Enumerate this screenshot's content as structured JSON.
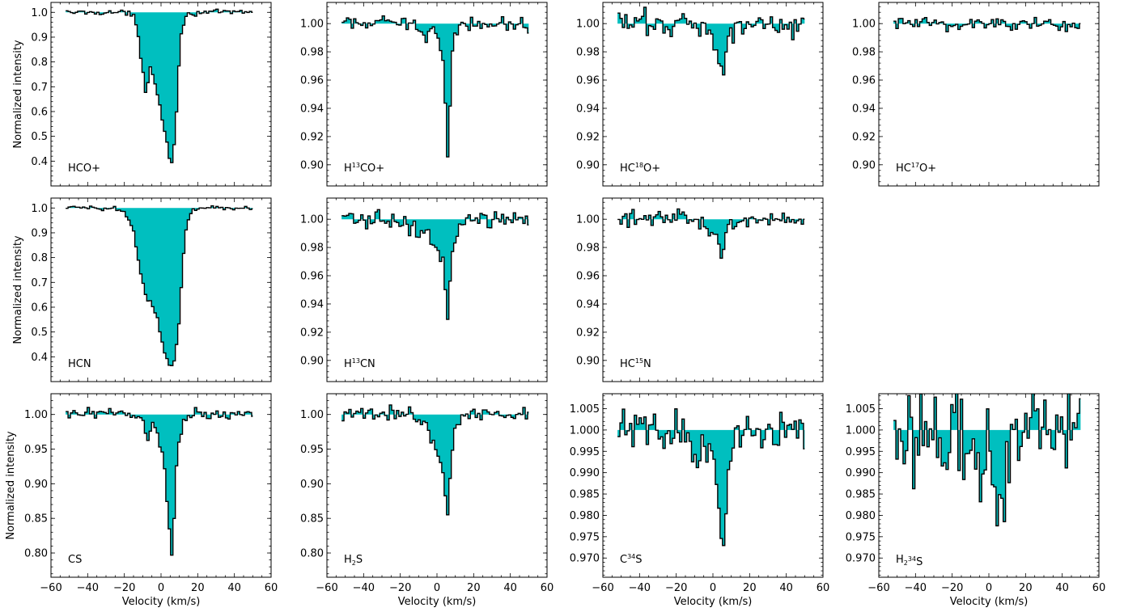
{
  "colors": {
    "fill": "#00bfbf",
    "step": "#000000",
    "frame": "#000000"
  },
  "layout": {
    "xlabel": "Velocity (km/s)",
    "ylabel": "Normalized intensity"
  },
  "chart_data": [
    {
      "type": "line",
      "row": 0,
      "col": 0,
      "label": [
        "HCO+"
      ],
      "xlim": [
        -60,
        60
      ],
      "ylim": [
        0.3,
        1.04
      ],
      "yticks": [
        0.4,
        0.5,
        0.6,
        0.7,
        0.8,
        0.9,
        1.0
      ],
      "ydecimals": 1,
      "show_xticklabels": false,
      "show_ylabel": true,
      "show_xlabel": false,
      "profile": {
        "noise": 0.005,
        "points": [
          [
            -52,
            1.0
          ],
          [
            -20,
            1.0
          ],
          [
            -15,
            0.985
          ],
          [
            -13,
            0.93
          ],
          [
            -11,
            0.82
          ],
          [
            -9,
            0.72
          ],
          [
            -8,
            0.66
          ],
          [
            -7,
            0.73
          ],
          [
            -6,
            0.78
          ],
          [
            -4,
            0.74
          ],
          [
            -2,
            0.68
          ],
          [
            0,
            0.6
          ],
          [
            2,
            0.52
          ],
          [
            4,
            0.45
          ],
          [
            5,
            0.39
          ],
          [
            6,
            0.39
          ],
          [
            7,
            0.45
          ],
          [
            8,
            0.55
          ],
          [
            9,
            0.68
          ],
          [
            10,
            0.82
          ],
          [
            11,
            0.92
          ],
          [
            13,
            0.975
          ],
          [
            15,
            0.99
          ],
          [
            20,
            1.0
          ],
          [
            50,
            1.0
          ]
        ]
      }
    },
    {
      "type": "line",
      "row": 0,
      "col": 1,
      "label": [
        "H",
        "13",
        "CO+"
      ],
      "xlim": [
        -60,
        60
      ],
      "ylim": [
        0.885,
        1.015
      ],
      "yticks": [
        0.9,
        0.92,
        0.94,
        0.96,
        0.98,
        1.0
      ],
      "ydecimals": 2,
      "show_xticklabels": false,
      "show_ylabel": false,
      "show_xlabel": false,
      "profile": {
        "noise": 0.0025,
        "points": [
          [
            -52,
            1.0
          ],
          [
            -12,
            1.0
          ],
          [
            -9,
            0.996
          ],
          [
            -7,
            0.992
          ],
          [
            -5,
            0.994
          ],
          [
            -3,
            0.997
          ],
          [
            -1,
            0.994
          ],
          [
            1,
            0.988
          ],
          [
            2,
            0.982
          ],
          [
            3,
            0.972
          ],
          [
            4,
            0.955
          ],
          [
            5,
            0.93
          ],
          [
            6,
            0.898
          ],
          [
            7,
            0.94
          ],
          [
            8,
            0.975
          ],
          [
            9,
            0.99
          ],
          [
            11,
            0.997
          ],
          [
            14,
            1.0
          ],
          [
            50,
            1.0
          ]
        ]
      }
    },
    {
      "type": "line",
      "row": 0,
      "col": 2,
      "label": [
        "HC",
        "18",
        "O+"
      ],
      "xlim": [
        -60,
        60
      ],
      "ylim": [
        0.885,
        1.015
      ],
      "yticks": [
        0.9,
        0.92,
        0.94,
        0.96,
        0.98,
        1.0
      ],
      "ydecimals": 2,
      "show_xticklabels": false,
      "show_ylabel": false,
      "show_xlabel": false,
      "profile": {
        "noise": 0.005,
        "points": [
          [
            -52,
            1.0
          ],
          [
            -5,
            1.0
          ],
          [
            -2,
            0.996
          ],
          [
            1,
            0.99
          ],
          [
            3,
            0.98
          ],
          [
            5,
            0.96
          ],
          [
            6,
            0.956
          ],
          [
            7,
            0.975
          ],
          [
            9,
            0.99
          ],
          [
            11,
            0.998
          ],
          [
            14,
            1.0
          ],
          [
            50,
            1.0
          ]
        ]
      }
    },
    {
      "type": "line",
      "row": 0,
      "col": 3,
      "label": [
        "HC",
        "17",
        "O+"
      ],
      "xlim": [
        -60,
        60
      ],
      "ylim": [
        0.885,
        1.015
      ],
      "yticks": [
        0.9,
        0.92,
        0.94,
        0.96,
        0.98,
        1.0
      ],
      "ydecimals": 2,
      "show_xticklabels": false,
      "show_ylabel": false,
      "show_xlabel": false,
      "profile": {
        "noise": 0.0028,
        "points": [
          [
            -52,
            1.0
          ],
          [
            50,
            1.0
          ]
        ]
      }
    },
    {
      "type": "line",
      "row": 1,
      "col": 0,
      "label": [
        "HCN"
      ],
      "xlim": [
        -60,
        60
      ],
      "ylim": [
        0.3,
        1.04
      ],
      "yticks": [
        0.4,
        0.5,
        0.6,
        0.7,
        0.8,
        0.9,
        1.0
      ],
      "ydecimals": 1,
      "show_xticklabels": false,
      "show_ylabel": true,
      "show_xlabel": false,
      "profile": {
        "noise": 0.005,
        "points": [
          [
            -52,
            1.0
          ],
          [
            -25,
            1.0
          ],
          [
            -20,
            0.985
          ],
          [
            -17,
            0.95
          ],
          [
            -15,
            0.9
          ],
          [
            -13,
            0.82
          ],
          [
            -11,
            0.74
          ],
          [
            -9,
            0.67
          ],
          [
            -8,
            0.63
          ],
          [
            -6,
            0.63
          ],
          [
            -4,
            0.6
          ],
          [
            -2,
            0.55
          ],
          [
            0,
            0.48
          ],
          [
            2,
            0.42
          ],
          [
            4,
            0.38
          ],
          [
            5,
            0.36
          ],
          [
            7,
            0.37
          ],
          [
            8,
            0.42
          ],
          [
            10,
            0.55
          ],
          [
            11,
            0.68
          ],
          [
            12,
            0.78
          ],
          [
            13,
            0.88
          ],
          [
            15,
            0.95
          ],
          [
            17,
            0.985
          ],
          [
            20,
            1.0
          ],
          [
            50,
            1.0
          ]
        ]
      }
    },
    {
      "type": "line",
      "row": 1,
      "col": 1,
      "label": [
        "H",
        "13",
        "CN"
      ],
      "xlim": [
        -60,
        60
      ],
      "ylim": [
        0.885,
        1.015
      ],
      "yticks": [
        0.9,
        0.92,
        0.94,
        0.96,
        0.98,
        1.0
      ],
      "ydecimals": 2,
      "show_xticklabels": false,
      "show_ylabel": false,
      "show_xlabel": false,
      "profile": {
        "noise": 0.003,
        "points": [
          [
            -52,
            1.0
          ],
          [
            -22,
            1.0
          ],
          [
            -18,
            0.996
          ],
          [
            -14,
            0.992
          ],
          [
            -10,
            0.99
          ],
          [
            -7,
            0.992
          ],
          [
            -4,
            0.989
          ],
          [
            -2,
            0.985
          ],
          [
            1,
            0.978
          ],
          [
            3,
            0.97
          ],
          [
            4,
            0.96
          ],
          [
            5,
            0.945
          ],
          [
            6,
            0.925
          ],
          [
            7,
            0.955
          ],
          [
            8,
            0.975
          ],
          [
            10,
            0.99
          ],
          [
            13,
            0.997
          ],
          [
            16,
            1.0
          ],
          [
            50,
            1.0
          ]
        ]
      }
    },
    {
      "type": "line",
      "row": 1,
      "col": 2,
      "label": [
        "HC",
        "15",
        "N"
      ],
      "xlim": [
        -60,
        60
      ],
      "ylim": [
        0.885,
        1.015
      ],
      "yticks": [
        0.9,
        0.92,
        0.94,
        0.96,
        0.98,
        1.0
      ],
      "ydecimals": 2,
      "show_xticklabels": false,
      "show_ylabel": false,
      "show_xlabel": false,
      "profile": {
        "noise": 0.0028,
        "points": [
          [
            -52,
            1.0
          ],
          [
            -8,
            1.0
          ],
          [
            -4,
            0.996
          ],
          [
            0,
            0.992
          ],
          [
            2,
            0.988
          ],
          [
            4,
            0.978
          ],
          [
            5,
            0.97
          ],
          [
            6,
            0.978
          ],
          [
            8,
            0.992
          ],
          [
            10,
            0.998
          ],
          [
            14,
            1.0
          ],
          [
            50,
            1.0
          ]
        ]
      }
    },
    {
      "type": "line",
      "row": 2,
      "col": 0,
      "label": [
        "CS"
      ],
      "xlim": [
        -60,
        60
      ],
      "ylim": [
        0.765,
        1.03
      ],
      "yticks": [
        0.8,
        0.85,
        0.9,
        0.95,
        1.0
      ],
      "ydecimals": 2,
      "show_xticklabels": true,
      "show_ylabel": true,
      "show_xlabel": true,
      "profile": {
        "noise": 0.004,
        "points": [
          [
            -52,
            1.0
          ],
          [
            -12,
            1.0
          ],
          [
            -10,
            0.99
          ],
          [
            -8,
            0.97
          ],
          [
            -7,
            0.96
          ],
          [
            -6,
            0.975
          ],
          [
            -4,
            0.985
          ],
          [
            -2,
            0.97
          ],
          [
            0,
            0.95
          ],
          [
            2,
            0.92
          ],
          [
            3,
            0.89
          ],
          [
            4,
            0.85
          ],
          [
            5,
            0.81
          ],
          [
            6,
            0.79
          ],
          [
            7,
            0.84
          ],
          [
            8,
            0.91
          ],
          [
            10,
            0.97
          ],
          [
            12,
            0.99
          ],
          [
            15,
            1.0
          ],
          [
            50,
            1.0
          ]
        ]
      }
    },
    {
      "type": "line",
      "row": 2,
      "col": 1,
      "label": [
        "H",
        "2",
        "S"
      ],
      "xlim": [
        -60,
        60
      ],
      "ylim": [
        0.765,
        1.03
      ],
      "yticks": [
        0.8,
        0.85,
        0.9,
        0.95,
        1.0
      ],
      "ydecimals": 2,
      "show_xticklabels": true,
      "show_ylabel": false,
      "show_xlabel": true,
      "profile": {
        "noise": 0.005,
        "points": [
          [
            -52,
            1.0
          ],
          [
            -12,
            1.0
          ],
          [
            -9,
            0.99
          ],
          [
            -6,
            0.985
          ],
          [
            -3,
            0.97
          ],
          [
            0,
            0.95
          ],
          [
            2,
            0.93
          ],
          [
            4,
            0.9
          ],
          [
            5,
            0.87
          ],
          [
            6,
            0.845
          ],
          [
            7,
            0.9
          ],
          [
            8,
            0.95
          ],
          [
            10,
            0.985
          ],
          [
            13,
            0.995
          ],
          [
            16,
            1.0
          ],
          [
            50,
            1.0
          ]
        ]
      }
    },
    {
      "type": "line",
      "row": 2,
      "col": 2,
      "label": [
        "C",
        "34",
        "S"
      ],
      "xlim": [
        -60,
        60
      ],
      "ylim": [
        0.9655,
        1.0085
      ],
      "yticks": [
        0.97,
        0.975,
        0.98,
        0.985,
        0.99,
        0.995,
        1.0,
        1.005
      ],
      "ydecimals": 3,
      "show_xticklabels": true,
      "show_ylabel": false,
      "show_xlabel": true,
      "profile": {
        "noise": 0.0022,
        "points": [
          [
            -52,
            1.0
          ],
          [
            -15,
            1.0
          ],
          [
            -12,
            0.997
          ],
          [
            -10,
            0.992
          ],
          [
            -7,
            0.995
          ],
          [
            -4,
            0.996
          ],
          [
            -1,
            0.994
          ],
          [
            1,
            0.99
          ],
          [
            3,
            0.985
          ],
          [
            4,
            0.978
          ],
          [
            5,
            0.972
          ],
          [
            6,
            0.969
          ],
          [
            7,
            0.978
          ],
          [
            8,
            0.99
          ],
          [
            10,
            0.997
          ],
          [
            13,
            1.0
          ],
          [
            50,
            1.0
          ]
        ]
      }
    },
    {
      "type": "line",
      "row": 2,
      "col": 3,
      "label": [
        "H",
        "2",
        "",
        "34",
        "S"
      ],
      "xlim": [
        -60,
        60
      ],
      "ylim": [
        0.9655,
        1.0085
      ],
      "yticks": [
        0.97,
        0.975,
        0.98,
        0.985,
        0.99,
        0.995,
        1.0,
        1.005
      ],
      "ydecimals": 3,
      "show_xticklabels": true,
      "show_ylabel": false,
      "show_xlabel": true,
      "profile": {
        "noise": 0.0055,
        "points": [
          [
            -52,
            1.0
          ],
          [
            -15,
            1.0
          ],
          [
            -10,
            0.996
          ],
          [
            -5,
            0.992
          ],
          [
            0,
            0.99
          ],
          [
            5,
            0.988
          ],
          [
            7,
            0.982
          ],
          [
            8,
            0.978
          ],
          [
            9,
            0.99
          ],
          [
            12,
            0.998
          ],
          [
            15,
            1.0
          ],
          [
            50,
            1.0
          ]
        ]
      }
    }
  ]
}
